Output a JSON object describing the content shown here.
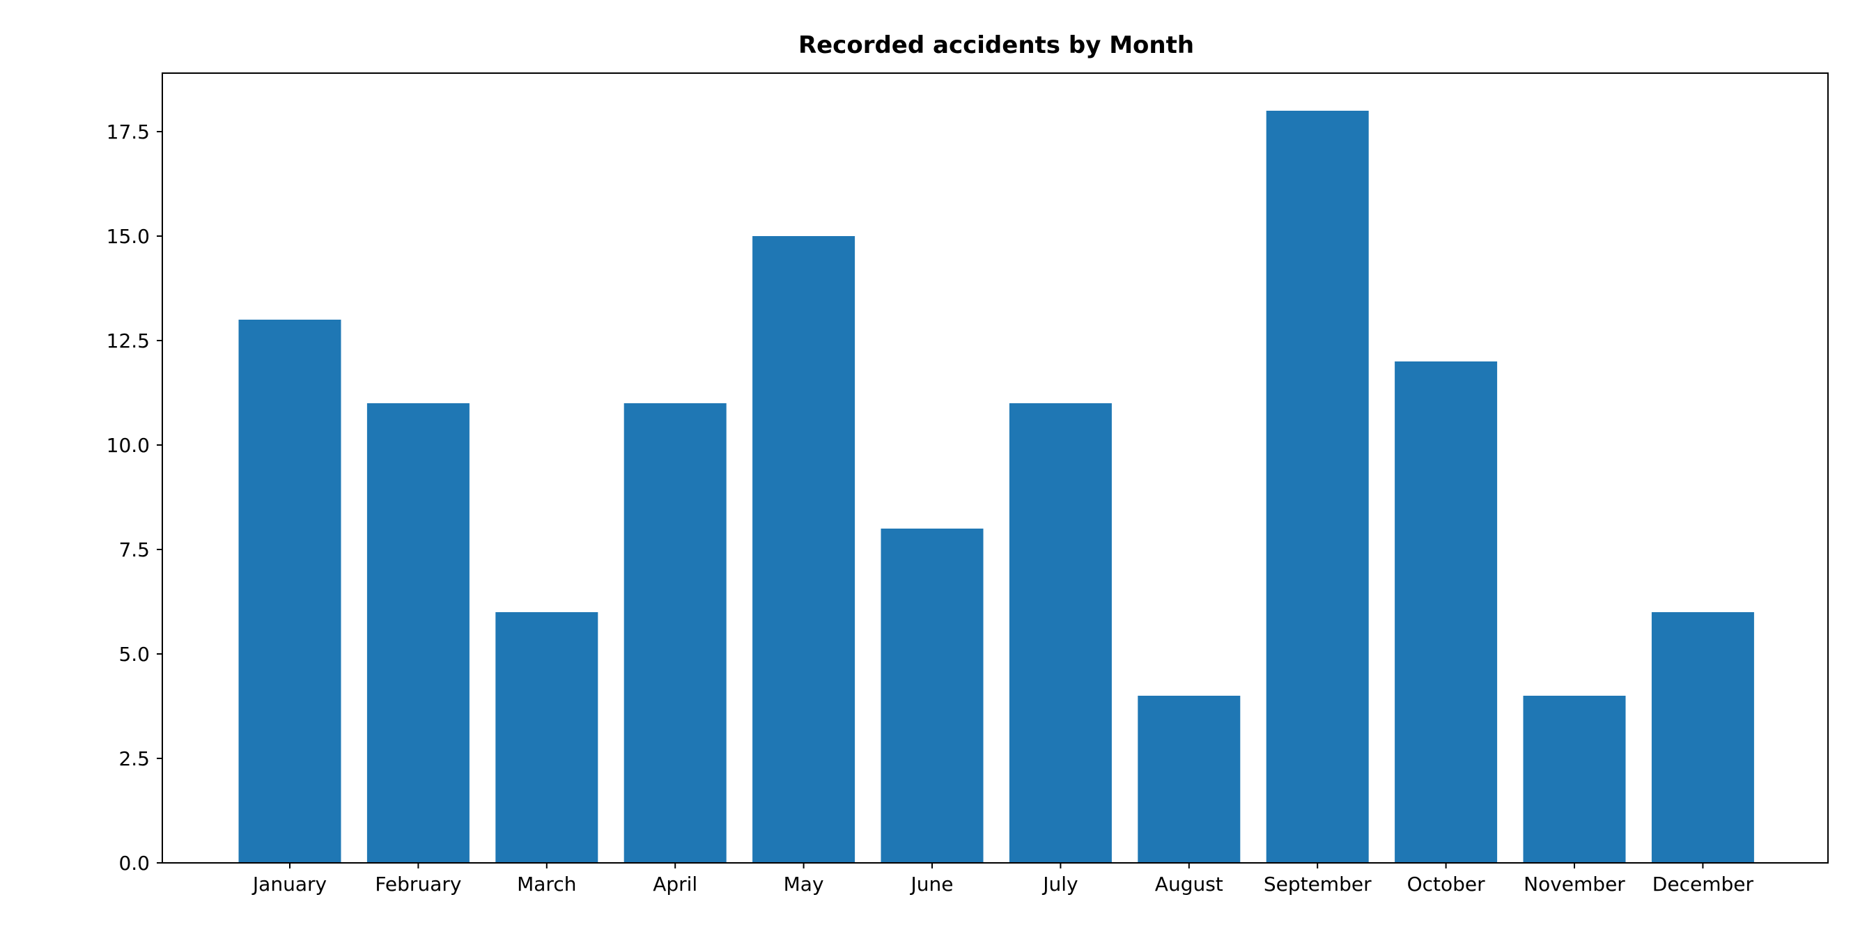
{
  "chart_data": {
    "type": "bar",
    "title": "Recorded accidents by Month",
    "xlabel": "",
    "ylabel": "",
    "categories": [
      "January",
      "February",
      "March",
      "April",
      "May",
      "June",
      "July",
      "August",
      "September",
      "October",
      "November",
      "December"
    ],
    "values": [
      13,
      11,
      6,
      11,
      15,
      8,
      11,
      4,
      18,
      12,
      4,
      6
    ],
    "ylim": [
      0,
      18.9
    ],
    "yticks": [
      "0.0",
      "2.5",
      "5.0",
      "7.5",
      "10.0",
      "12.5",
      "15.0",
      "17.5"
    ],
    "bar_color": "#1f77b4",
    "grid": false,
    "legend": "none"
  }
}
